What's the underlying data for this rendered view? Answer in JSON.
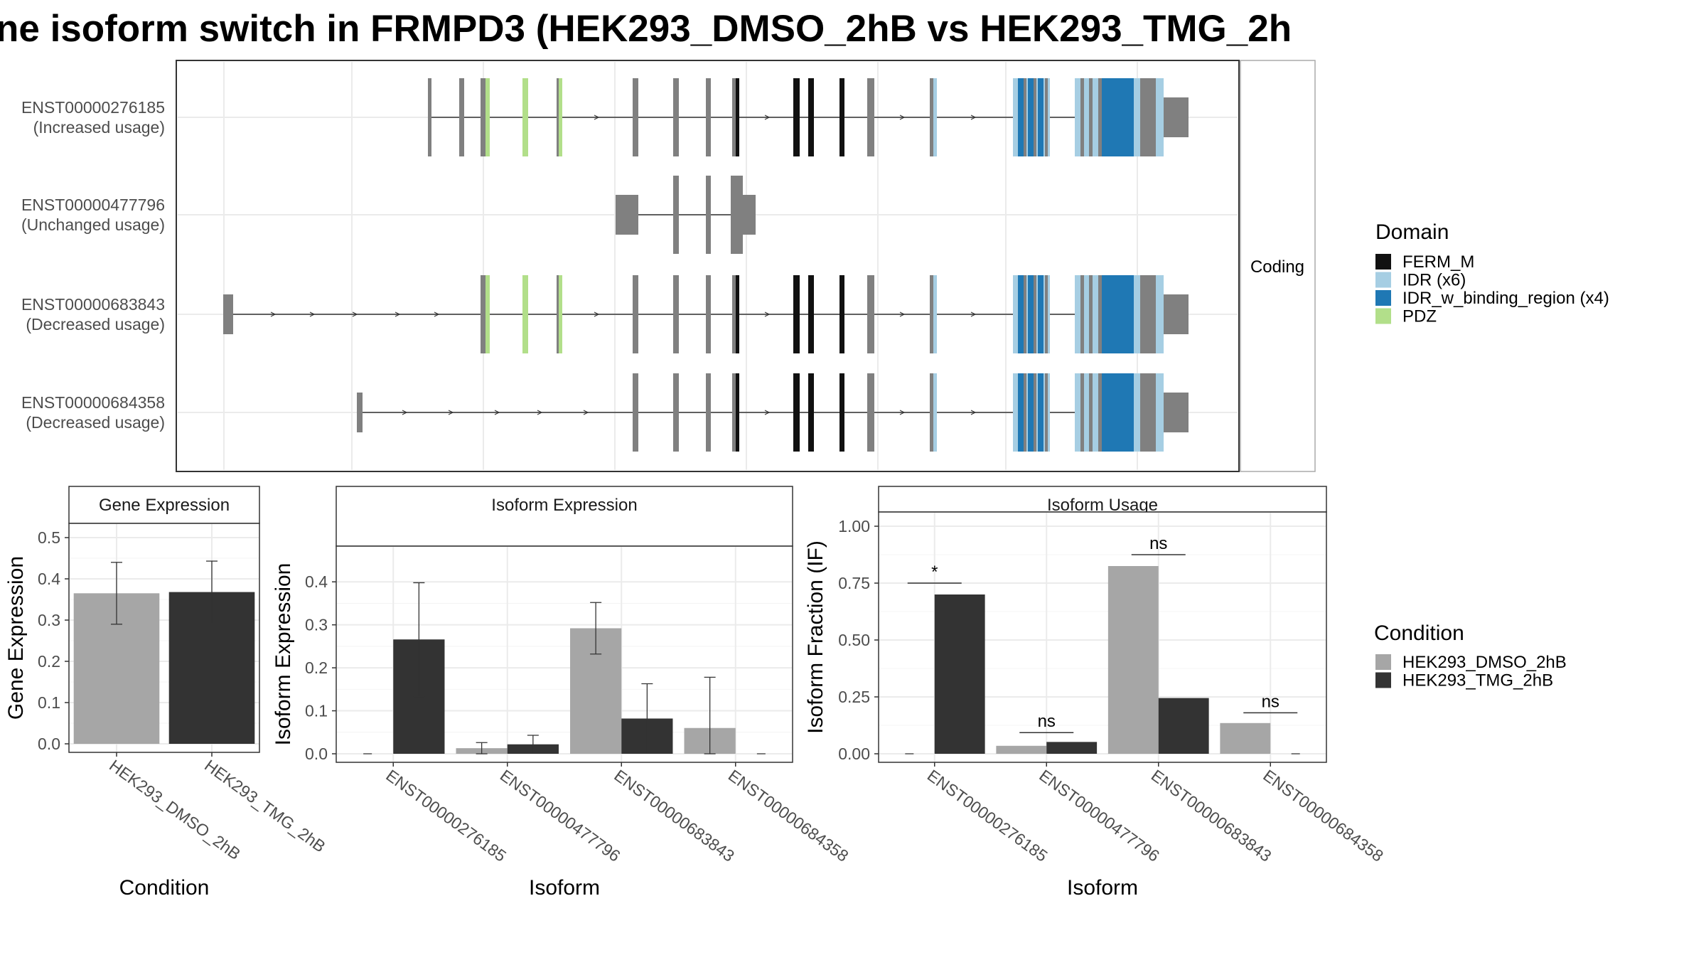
{
  "title": "ne isoform switch in FRMPD3 (HEK293_DMSO_2hB vs HEK293_TMG_2h",
  "colors": {
    "dmso": "#a6a6a6",
    "tmg": "#333333",
    "exon": "#808080",
    "FERM_M": "#111111",
    "IDR": "#a6cee3",
    "IDR_w_binding_region": "#1f78b4",
    "PDZ": "#b2df8a"
  },
  "chart_data": [
    {
      "type": "gene-structure",
      "facet_label": "Coding",
      "transcripts": [
        {
          "id": "ENST00000276185",
          "label": "(Increased usage)"
        },
        {
          "id": "ENST00000477796",
          "label": "(Unchanged usage)"
        },
        {
          "id": "ENST00000683843",
          "label": "(Decreased usage)"
        },
        {
          "id": "ENST00000684358",
          "label": "(Decreased usage)"
        }
      ],
      "legend": {
        "title": "Domain",
        "items": [
          {
            "name": "FERM_M",
            "color": "#111111"
          },
          {
            "name": "IDR (x6)",
            "color": "#a6cee3"
          },
          {
            "name": "IDR_w_binding_region (x4)",
            "color": "#1f78b4"
          },
          {
            "name": "PDZ",
            "color": "#b2df8a"
          }
        ]
      }
    },
    {
      "type": "bar",
      "panel": "Gene Expression",
      "xlabel": "Condition",
      "ylabel": "Gene Expression",
      "ylim": [
        0,
        0.5
      ],
      "yticks": [
        "0.0",
        "0.1",
        "0.2",
        "0.3",
        "0.4",
        "0.5"
      ],
      "categories": [
        "HEK293_DMSO_2hB",
        "HEK293_TMG_2hB"
      ],
      "values": [
        0.365,
        0.368
      ],
      "errors": [
        [
          0.29,
          0.44
        ],
        [
          0.292,
          0.443
        ]
      ]
    },
    {
      "type": "bar",
      "panel": "Isoform Expression",
      "xlabel": "Isoform",
      "ylabel": "Isoform Expression",
      "ylim": [
        0,
        0.45
      ],
      "yticks": [
        "0.0",
        "0.1",
        "0.2",
        "0.3",
        "0.4"
      ],
      "categories": [
        "ENST00000276185",
        "ENST00000477796",
        "ENST00000683843",
        "ENST00000684358"
      ],
      "series": [
        {
          "name": "HEK293_DMSO_2hB",
          "values": [
            0.0,
            0.013,
            0.292,
            0.06
          ],
          "errors": [
            [
              0.0,
              0.0
            ],
            [
              0.0,
              0.026
            ],
            [
              0.232,
              0.352
            ],
            [
              0.0,
              0.178
            ]
          ]
        },
        {
          "name": "HEK293_TMG_2hB",
          "values": [
            0.266,
            0.022,
            0.082,
            0.0
          ],
          "errors": [
            [
              0.133,
              0.398
            ],
            [
              0.002,
              0.043
            ],
            [
              0.002,
              0.163
            ],
            [
              0.0,
              0.0
            ]
          ]
        }
      ]
    },
    {
      "type": "bar",
      "panel": "Isoform Usage",
      "xlabel": "Isoform",
      "ylabel": "Isoform Fraction (IF)",
      "ylim": [
        0,
        1.0
      ],
      "yticks": [
        "0.00",
        "0.25",
        "0.50",
        "0.75",
        "1.00"
      ],
      "categories": [
        "ENST00000276185",
        "ENST00000477796",
        "ENST00000683843",
        "ENST00000684358"
      ],
      "series": [
        {
          "name": "HEK293_DMSO_2hB",
          "values": [
            0.0,
            0.035,
            0.825,
            0.135
          ]
        },
        {
          "name": "HEK293_TMG_2hB",
          "values": [
            0.7,
            0.052,
            0.245,
            0.0
          ]
        }
      ],
      "significance": [
        "*",
        "ns",
        "ns",
        "ns"
      ],
      "significance_level": [
        0.75,
        0.093,
        0.875,
        0.18
      ]
    }
  ],
  "condition_legend": {
    "title": "Condition",
    "items": [
      {
        "name": "HEK293_DMSO_2hB",
        "color": "#a6a6a6"
      },
      {
        "name": "HEK293_TMG_2hB",
        "color": "#333333"
      }
    ]
  }
}
